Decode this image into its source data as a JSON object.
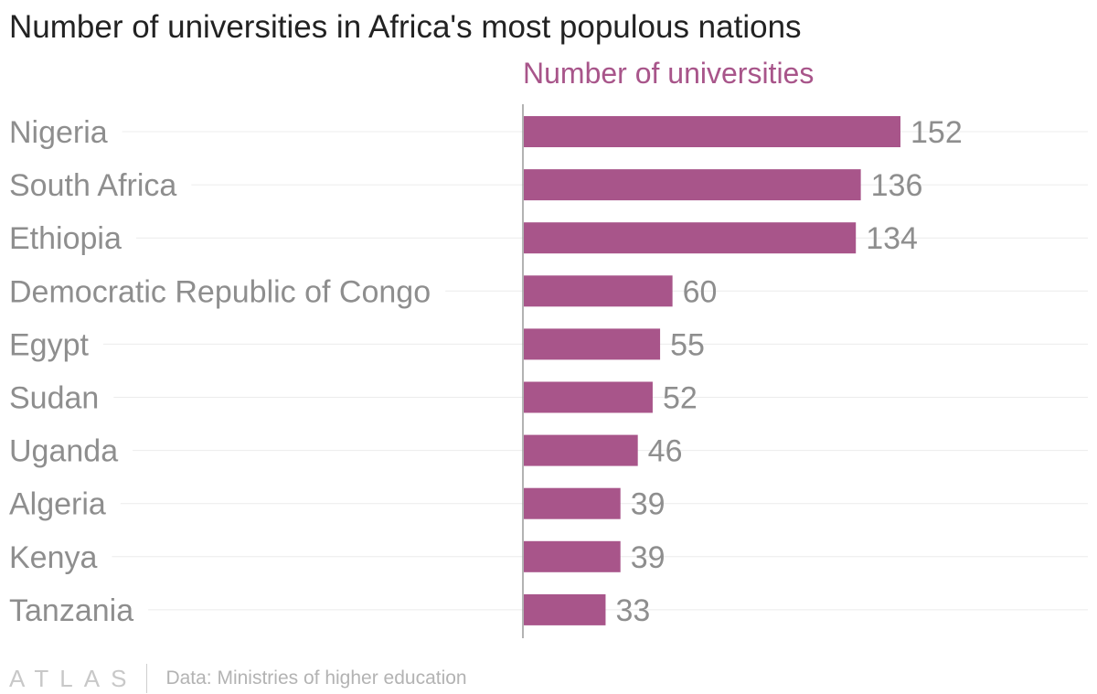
{
  "chart_data": {
    "type": "bar",
    "orientation": "horizontal",
    "title": "Number of universities in Africa's most populous nations",
    "series_name": "Number of universities",
    "categories": [
      "Nigeria",
      "South Africa",
      "Ethiopia",
      "Democratic Republic of Congo",
      "Egypt",
      "Sudan",
      "Uganda",
      "Algeria",
      "Kenya",
      "Tanzania"
    ],
    "values": [
      152,
      136,
      134,
      60,
      55,
      52,
      46,
      39,
      39,
      33
    ],
    "xlim": [
      0,
      152
    ],
    "grid": true,
    "bar_color": "#a8558a",
    "label_color": "#8e8e8e"
  },
  "footer": {
    "logo": "ATLAS",
    "source": "Data: Ministries of higher education"
  }
}
